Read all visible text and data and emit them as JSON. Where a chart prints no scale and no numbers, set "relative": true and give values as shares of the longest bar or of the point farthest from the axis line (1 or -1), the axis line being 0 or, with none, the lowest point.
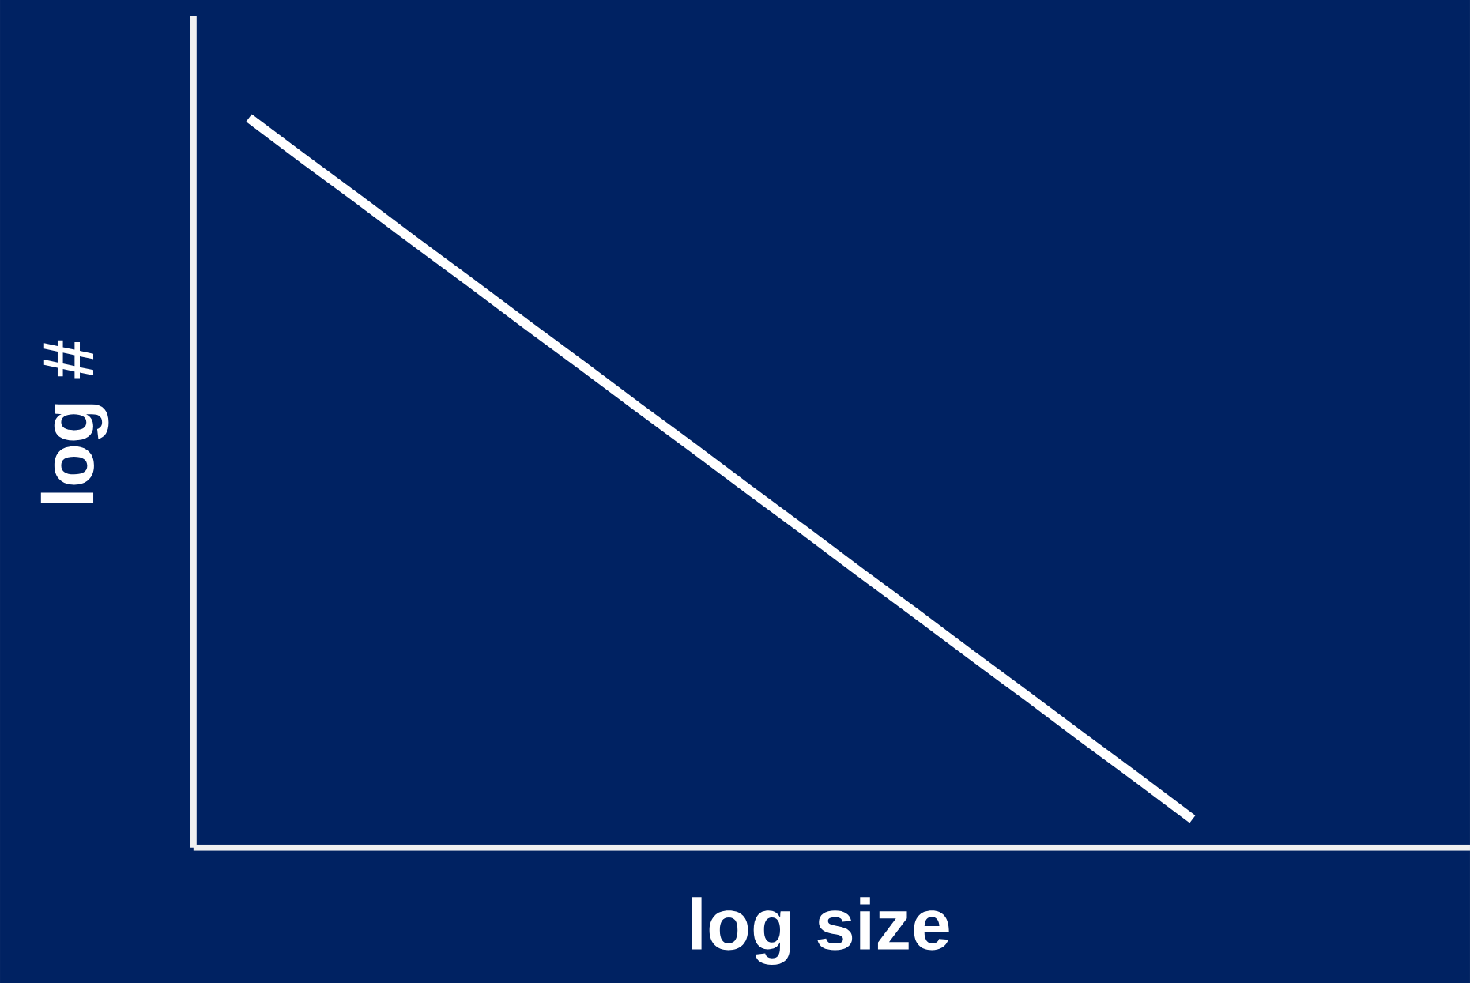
{
  "chart_data": {
    "type": "line",
    "xlabel": "log size",
    "ylabel": "log #",
    "relative": true,
    "categories": [
      null,
      null,
      null,
      null,
      null,
      null,
      null,
      null,
      null,
      null,
      null,
      null,
      null,
      null,
      null,
      null,
      null,
      null,
      null,
      null,
      null,
      null,
      null,
      null
    ],
    "series": [
      {
        "color": "#ffffff",
        "values": [
          null,
          1,
          0.943,
          0.887,
          0.83,
          0.774,
          0.717,
          0.661,
          0.604,
          0.548,
          0.491,
          0.435,
          0.378,
          0.322,
          0.265,
          0.209,
          0.152,
          0.096,
          0.039,
          null,
          null,
          null,
          null,
          null
        ]
      }
    ]
  }
}
